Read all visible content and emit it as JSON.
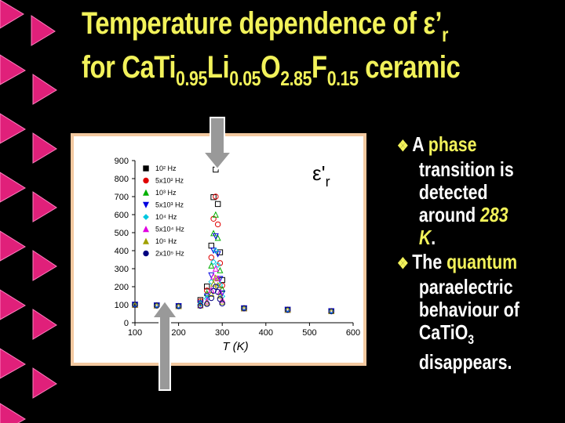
{
  "title": {
    "line1": [
      "Temperature dependence of ε’",
      "r"
    ],
    "line2": [
      "for CaTi",
      "0.95",
      "Li",
      "0.05",
      "O",
      "2.85",
      "F",
      "0.15",
      " ceramic"
    ]
  },
  "bullets": [
    [
      "A ",
      "phase",
      " transition  is detected around ",
      "283 K",
      "."
    ],
    [
      "The ",
      "quantum",
      " paraelectric behaviour of CaTiO",
      "3",
      " disappears",
      "."
    ]
  ],
  "chart_data": {
    "type": "scatter",
    "x_label": "T (K)",
    "y_label": "ε'",
    "y_label_sub": "r",
    "x": [
      100,
      150,
      200,
      250,
      265,
      275,
      280,
      285,
      290,
      295,
      300,
      350,
      450,
      550
    ],
    "series": [
      {
        "name": "10² Hz",
        "color": "#000000",
        "marker": "square",
        "values": [
          100,
          96,
          92,
          126,
          201,
          428,
          697,
          850,
          659,
          391,
          237,
          80,
          72,
          64
        ]
      },
      {
        "name": "5x10² Hz",
        "color": "#e00000",
        "marker": "circle",
        "values": [
          100,
          96,
          92,
          119,
          179,
          362,
          577,
          700,
          546,
          331,
          207,
          80,
          72,
          64
        ]
      },
      {
        "name": "10³ Hz",
        "color": "#00b000",
        "marker": "triangle",
        "values": [
          100,
          96,
          92,
          114,
          164,
          317,
          497,
          600,
          471,
          291,
          187,
          80,
          72,
          64
        ]
      },
      {
        "name": "5x10³ Hz",
        "color": "#0000e0",
        "marker": "triangle-down",
        "values": [
          100,
          96,
          92,
          108,
          146,
          263,
          401,
          480,
          381,
          243,
          163,
          80,
          72,
          64
        ]
      },
      {
        "name": "10⁴ Hz",
        "color": "#00c8e0",
        "marker": "diamond",
        "values": [
          100,
          96,
          92,
          104,
          134,
          227,
          337,
          400,
          321,
          211,
          147,
          80,
          72,
          64
        ]
      },
      {
        "name": "5x10⁴ Hz",
        "color": "#e000e0",
        "marker": "triangle",
        "values": [
          100,
          96,
          92,
          99,
          119,
          182,
          257,
          300,
          246,
          171,
          127,
          80,
          72,
          64
        ]
      },
      {
        "name": "10⁵ Hz",
        "color": "#a0a000",
        "marker": "triangle",
        "values": [
          100,
          96,
          92,
          96,
          111,
          160,
          217,
          250,
          208,
          151,
          117,
          80,
          72,
          64
        ]
      },
      {
        "name": "2x10⁵ Hz",
        "color": "#000080",
        "marker": "circle",
        "values": [
          100,
          96,
          92,
          94,
          104,
          137,
          177,
          200,
          171,
          131,
          107,
          80,
          72,
          64
        ]
      }
    ],
    "xlim": [
      100,
      600
    ],
    "xticks": [
      100,
      200,
      300,
      400,
      500,
      600
    ],
    "ylim": [
      0,
      900
    ],
    "yticks": [
      0,
      100,
      200,
      300,
      400,
      500,
      600,
      700,
      800,
      900
    ]
  }
}
